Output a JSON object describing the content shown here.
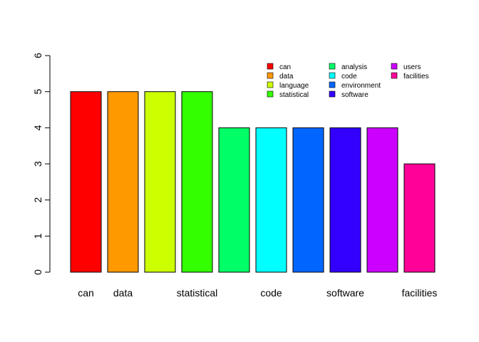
{
  "chart_data": {
    "type": "bar",
    "title": "",
    "xlabel": "",
    "ylabel": "",
    "ylim": [
      0,
      6
    ],
    "yticks": [
      0,
      1,
      2,
      3,
      4,
      5,
      6
    ],
    "categories": [
      "can",
      "data",
      "language",
      "statistical",
      "analysis",
      "code",
      "environment",
      "software",
      "users",
      "facilities"
    ],
    "values": [
      5,
      5,
      5,
      5,
      4,
      4,
      4,
      4,
      4,
      3
    ],
    "colors": [
      "#FF0000",
      "#FF9900",
      "#CCFF00",
      "#33FF00",
      "#00FF66",
      "#00FFFF",
      "#0066FF",
      "#3300FF",
      "#CC00FF",
      "#FF0099"
    ],
    "visible_category_labels": [
      "can",
      "data",
      "statistical",
      "code",
      "software",
      "facilities"
    ],
    "legend": {
      "placement": "top-right",
      "columns": 3,
      "entries": [
        "can",
        "data",
        "language",
        "statistical",
        "analysis",
        "code",
        "environment",
        "software",
        "users",
        "facilities"
      ]
    },
    "grid": false
  }
}
